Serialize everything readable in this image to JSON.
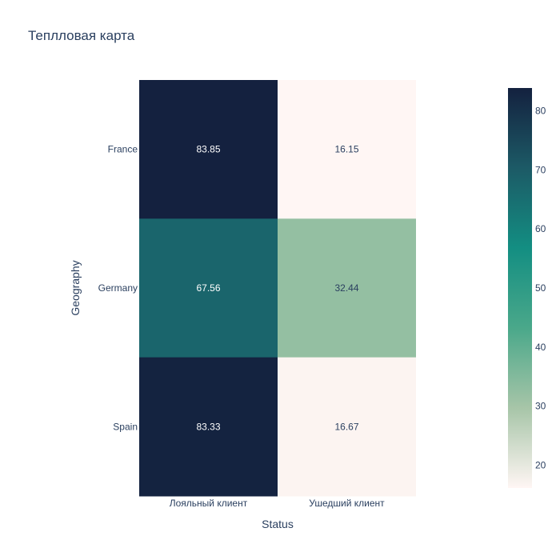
{
  "chart_data": {
    "type": "heatmap",
    "title": "Теплловая карта",
    "xlabel": "Status",
    "ylabel": "Geography",
    "x": [
      "Лояльный клиент",
      "Ушедший клиент"
    ],
    "y": [
      "France",
      "Germany",
      "Spain"
    ],
    "z": [
      [
        83.85,
        16.15
      ],
      [
        67.56,
        32.44
      ],
      [
        83.33,
        16.67
      ]
    ],
    "text": [
      [
        "83.85",
        "16.15"
      ],
      [
        "67.56",
        "32.44"
      ],
      [
        "83.33",
        "16.67"
      ]
    ],
    "colorscale": "tempo",
    "zmin": 16.15,
    "zmax": 83.85,
    "colorbar": {
      "ticks": [
        20,
        30,
        40,
        50,
        60,
        70,
        80
      ],
      "tick_labels": [
        "20",
        "30",
        "40",
        "50",
        "60",
        "70",
        "80"
      ]
    },
    "colors": {
      "stops": [
        "#fff6f4",
        "#a7c5a8",
        "#4aa88a",
        "#138e82",
        "#1c5a66",
        "#14213f"
      ],
      "text_dark": "#2a3f5f",
      "text_light": "#ffffff"
    }
  }
}
